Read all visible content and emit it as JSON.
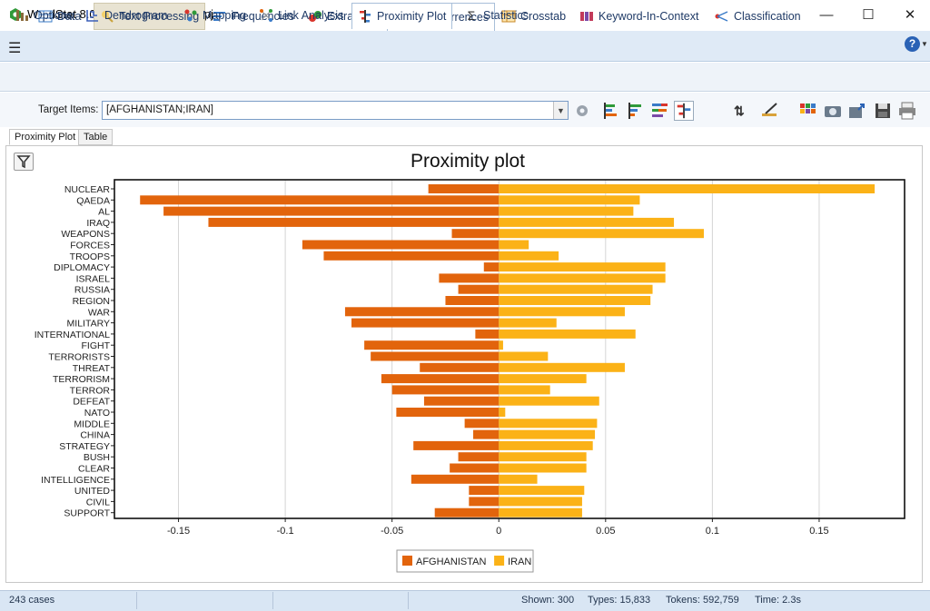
{
  "window": {
    "title": "WordStat 8.0.26 - Election 2008.ppj"
  },
  "main_tabs": [
    {
      "label": "Data",
      "icon": "table-icon"
    },
    {
      "label": "Text Processing",
      "icon": "text-processing-icon"
    },
    {
      "label": "Frequencies",
      "icon": "frequencies-icon"
    },
    {
      "label": "Extraction",
      "icon": "extraction-icon"
    },
    {
      "label": "Cooccurrences",
      "icon": "cooccurrences-icon"
    },
    {
      "label": "Crosstab",
      "icon": "crosstab-icon"
    },
    {
      "label": "Keyword-In-Context",
      "icon": "kwic-icon"
    },
    {
      "label": "Classification",
      "icon": "classification-icon"
    }
  ],
  "sub_tabs": [
    {
      "label": "Options"
    },
    {
      "label": "Dendrogram"
    },
    {
      "label": "Mapping"
    },
    {
      "label": "Link Analysis"
    },
    {
      "label": "Proximity Plot"
    },
    {
      "label": "Statistics"
    }
  ],
  "toolbar": {
    "target_label": "Target Items:",
    "target_value": "[AFGHANISTAN;IRAN]"
  },
  "view_tabs": [
    {
      "label": "Proximity Plot"
    },
    {
      "label": "Table"
    }
  ],
  "status": {
    "cases": "243 cases",
    "shown": "Shown: 300",
    "types": "Types: 15,833",
    "tokens": "Tokens: 592,759",
    "time": "Time: 2.3s"
  },
  "colors": {
    "afghanistan": "#e2640c",
    "iran": "#fbb217",
    "accent": "#1f5fa8"
  },
  "chart_data": {
    "type": "bar",
    "orientation": "horizontal",
    "title": "Proximity plot",
    "xlabel": "",
    "ylabel": "",
    "xlim": [
      -0.18,
      0.19
    ],
    "xticks": [
      -0.15,
      -0.1,
      -0.05,
      0,
      0.05,
      0.1,
      0.15
    ],
    "xtick_labels": [
      "-0.15",
      "-0.1",
      "-0.05",
      "0",
      "0.05",
      "0.1",
      "0.15"
    ],
    "grid": true,
    "legend_position": "bottom",
    "categories": [
      "NUCLEAR",
      "QAEDA",
      "AL",
      "IRAQ",
      "WEAPONS",
      "FORCES",
      "TROOPS",
      "DIPLOMACY",
      "ISRAEL",
      "RUSSIA",
      "REGION",
      "WAR",
      "MILITARY",
      "INTERNATIONAL",
      "FIGHT",
      "TERRORISTS",
      "THREAT",
      "TERRORISM",
      "TERROR",
      "DEFEAT",
      "NATO",
      "MIDDLE",
      "CHINA",
      "STRATEGY",
      "BUSH",
      "CLEAR",
      "INTELLIGENCE",
      "UNITED",
      "CIVIL",
      "SUPPORT"
    ],
    "series": [
      {
        "name": "AFGHANISTAN",
        "color": "#e2640c",
        "values": [
          -0.033,
          -0.168,
          -0.157,
          -0.136,
          -0.022,
          -0.092,
          -0.082,
          -0.007,
          -0.028,
          -0.019,
          -0.025,
          -0.072,
          -0.069,
          -0.011,
          -0.063,
          -0.06,
          -0.037,
          -0.055,
          -0.05,
          -0.035,
          -0.048,
          -0.016,
          -0.012,
          -0.04,
          -0.019,
          -0.023,
          -0.041,
          -0.014,
          -0.014,
          -0.03
        ]
      },
      {
        "name": "IRAN",
        "color": "#fbb217",
        "values": [
          0.176,
          0.066,
          0.063,
          0.082,
          0.096,
          0.014,
          0.028,
          0.078,
          0.078,
          0.072,
          0.071,
          0.059,
          0.027,
          0.064,
          0.002,
          0.023,
          0.059,
          0.041,
          0.024,
          0.047,
          0.003,
          0.046,
          0.045,
          0.044,
          0.041,
          0.041,
          0.018,
          0.04,
          0.039,
          0.039
        ]
      }
    ]
  }
}
